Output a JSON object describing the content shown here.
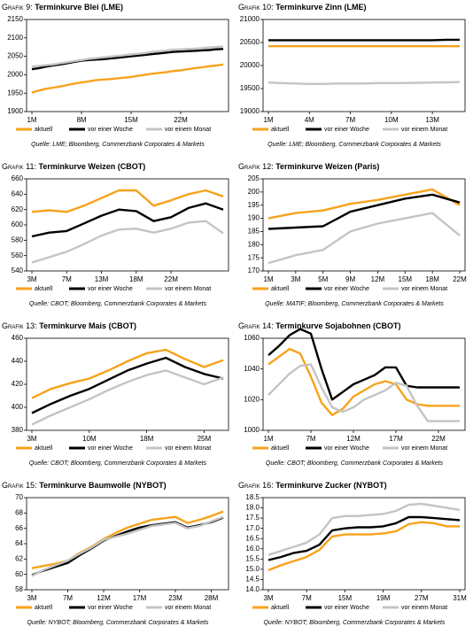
{
  "chart_data": [
    {
      "type": "line",
      "label": "Grafik 9:",
      "title": "Terminkurve Blei (LME)",
      "categories": [
        "1M",
        null,
        null,
        null,
        null,
        null,
        null,
        "8M",
        null,
        null,
        null,
        null,
        null,
        null,
        "15M",
        null,
        null,
        null,
        null,
        null,
        null,
        "22M",
        null,
        null,
        null,
        null,
        null,
        null
      ],
      "series": [
        {
          "name": "aktuell",
          "color": "#f7a21b",
          "values": [
            1952,
            1957,
            1962,
            1965,
            1968,
            1972,
            1976,
            1979,
            1982,
            1985,
            1987,
            1988,
            1990,
            1992,
            1994,
            1997,
            2000,
            2003,
            2005,
            2007,
            2010,
            2012,
            2015,
            2018,
            2020,
            2023,
            2025,
            2028
          ]
        },
        {
          "name": "vor einer Woche",
          "color": "#000000",
          "values": [
            2015,
            2018,
            2022,
            2025,
            2028,
            2031,
            2035,
            2038,
            2040,
            2041,
            2042,
            2044,
            2046,
            2048,
            2050,
            2052,
            2054,
            2056,
            2058,
            2060,
            2062,
            2063,
            2064,
            2065,
            2066,
            2067,
            2069,
            2070
          ]
        },
        {
          "name": "vor einem Monat",
          "color": "#c4c4c4",
          "values": [
            2022,
            2024,
            2026,
            2028,
            2031,
            2034,
            2037,
            2040,
            2043,
            2045,
            2047,
            2049,
            2051,
            2053,
            2055,
            2057,
            2059,
            2062,
            2064,
            2066,
            2068,
            2069,
            2070,
            2071,
            2072,
            2074,
            2075,
            2077
          ]
        }
      ],
      "ylim": [
        1900,
        2150
      ],
      "yticks": [
        1900,
        1950,
        2000,
        2050,
        2100,
        2150
      ],
      "source": "Quelle: LME; Bloomberg, Commerzbank Corporates & Markets"
    },
    {
      "type": "line",
      "label": "Grafik 10:",
      "title": "Terminkurve Zinn (LME)",
      "categories": [
        "1M",
        null,
        null,
        "4M",
        null,
        null,
        "7M",
        null,
        null,
        "10M",
        null,
        null,
        "13M",
        null,
        null
      ],
      "series": [
        {
          "name": "aktuell",
          "color": "#f7a21b",
          "values": [
            20420,
            20420,
            20420,
            20420,
            20420,
            20420,
            20420,
            20420,
            20420,
            20420,
            20420,
            20420,
            20420,
            20420,
            20420
          ]
        },
        {
          "name": "vor einer Woche",
          "color": "#000000",
          "values": [
            20550,
            20550,
            20550,
            20550,
            20550,
            20550,
            20550,
            20550,
            20550,
            20550,
            20550,
            20550,
            20550,
            20560,
            20560
          ]
        },
        {
          "name": "vor einem Monat",
          "color": "#c4c4c4",
          "values": [
            19630,
            19620,
            19610,
            19600,
            19600,
            19610,
            19610,
            19610,
            19620,
            19620,
            19620,
            19625,
            19630,
            19635,
            19640
          ]
        }
      ],
      "ylim": [
        19000,
        21000
      ],
      "yticks": [
        19000,
        19500,
        20000,
        20500,
        21000
      ],
      "source": "Quelle: LME; Bloomberg, Commerzbank Corporates & Markets"
    },
    {
      "type": "line",
      "label": "Grafik 11:",
      "title": "Terminkurve Weizen (CBOT)",
      "categories": [
        "3M",
        null,
        "7M",
        null,
        "13M",
        null,
        "18M",
        null,
        "22M",
        null,
        null,
        null
      ],
      "series": [
        {
          "name": "aktuell",
          "color": "#f7a21b",
          "values": [
            617,
            619,
            617,
            625,
            635,
            645,
            645,
            625,
            632,
            640,
            645,
            637
          ]
        },
        {
          "name": "vor einer Woche",
          "color": "#000000",
          "values": [
            585,
            590,
            592,
            602,
            612,
            620,
            618,
            605,
            610,
            622,
            628,
            620
          ]
        },
        {
          "name": "vor einem Monat",
          "color": "#c4c4c4",
          "values": [
            551,
            558,
            565,
            575,
            586,
            594,
            595,
            590,
            595,
            603,
            605,
            589
          ]
        }
      ],
      "ylim": [
        540,
        660
      ],
      "yticks": [
        540,
        560,
        580,
        600,
        620,
        640,
        660
      ],
      "source": "Quelle: CBOT; Bloomberg, Commerzbank Corporates & Markets"
    },
    {
      "type": "line",
      "label": "Grafik 12:",
      "title": "Terminkurve Weizen (Paris)",
      "categories": [
        "1M",
        "3M",
        "5M",
        "9M",
        "12M",
        "15M",
        "18M",
        "22M"
      ],
      "series": [
        {
          "name": "aktuell",
          "color": "#f7a21b",
          "values": [
            190,
            192,
            193,
            195.5,
            197,
            199,
            201,
            195
          ]
        },
        {
          "name": "vor einer Woche",
          "color": "#000000",
          "values": [
            186,
            186.5,
            187,
            192.5,
            195,
            197.5,
            199,
            196
          ]
        },
        {
          "name": "vor einem Monat",
          "color": "#c4c4c4",
          "values": [
            173,
            176,
            178,
            185,
            188,
            190,
            192,
            183.5
          ]
        }
      ],
      "ylim": [
        170,
        205
      ],
      "yticks": [
        170,
        175,
        180,
        185,
        190,
        195,
        200,
        205
      ],
      "source": "Quelle: MATIF; Bloomberg, Commerzbank Corporates & Markets"
    },
    {
      "type": "line",
      "label": "Grafik 13:",
      "title": "Terminkurve Mais (CBOT)",
      "categories": [
        "3M",
        null,
        null,
        "10M",
        null,
        null,
        "18M",
        null,
        null,
        "25M",
        null
      ],
      "series": [
        {
          "name": "aktuell",
          "color": "#f7a21b",
          "values": [
            408,
            416,
            421,
            425,
            432,
            440,
            447,
            450,
            442,
            435,
            441
          ]
        },
        {
          "name": "vor einer Woche",
          "color": "#000000",
          "values": [
            395,
            403,
            410,
            416,
            424,
            432,
            438,
            443,
            435,
            429,
            425
          ]
        },
        {
          "name": "vor einem Monat",
          "color": "#c4c4c4",
          "values": [
            385,
            393,
            400,
            407,
            415,
            422,
            428,
            432,
            426,
            420,
            426
          ]
        }
      ],
      "ylim": [
        380,
        460
      ],
      "yticks": [
        380,
        400,
        420,
        440,
        460
      ],
      "source": "Quelle: CBOT; Bloomberg, Commerzbank Corporates & Markets"
    },
    {
      "type": "line",
      "label": "Grafik 14:",
      "title": "Terminkurve Sojabohnen (CBOT)",
      "categories": [
        "1M",
        null,
        null,
        null,
        "7M",
        null,
        null,
        null,
        "12M",
        null,
        null,
        null,
        "17M",
        null,
        null,
        null,
        "22M",
        null,
        null
      ],
      "series": [
        {
          "name": "aktuell",
          "color": "#f7a21b",
          "values": [
            1043,
            1048,
            1053,
            1050,
            1035,
            1018,
            1010,
            1014,
            1022,
            1026,
            1030,
            1032,
            1030,
            1020,
            1017,
            1016,
            1016,
            1016,
            1016
          ]
        },
        {
          "name": "vor einer Woche",
          "color": "#000000",
          "values": [
            1049,
            1055,
            1062,
            1066,
            1063,
            1040,
            1020,
            1025,
            1030,
            1033,
            1036,
            1041,
            1041,
            1029,
            1028,
            1028,
            1028,
            1028,
            1028
          ]
        },
        {
          "name": "vor einem Monat",
          "color": "#c4c4c4",
          "values": [
            1023,
            1030,
            1037,
            1042,
            1043,
            1028,
            1015,
            1012,
            1015,
            1020,
            1023,
            1026,
            1031,
            1029,
            1016,
            1006,
            1006,
            1006,
            1006
          ]
        }
      ],
      "ylim": [
        1000,
        1060
      ],
      "yticks": [
        1000,
        1020,
        1040,
        1060
      ],
      "source": "Quelle: CBOT; Bloomberg, Commerzbank Corporates & Markets"
    },
    {
      "type": "line",
      "label": "Grafik 15:",
      "title": "Terminkurve Baumwolle (NYBOT)",
      "categories": [
        "3M",
        null,
        null,
        "7M",
        null,
        null,
        "12M",
        null,
        null,
        "17M",
        null,
        null,
        "23M",
        null,
        null,
        "28M",
        null
      ],
      "series": [
        {
          "name": "aktuell",
          "color": "#f7a21b",
          "values": [
            60.8,
            61.1,
            61.4,
            61.8,
            62.8,
            63.6,
            64.6,
            65.4,
            66.1,
            66.6,
            67.1,
            67.3,
            67.5,
            66.7,
            67.1,
            67.6,
            68.2
          ]
        },
        {
          "name": "vor einer Woche",
          "color": "#000000",
          "values": [
            59.9,
            60.5,
            61.0,
            61.5,
            62.5,
            63.4,
            64.4,
            65.0,
            65.6,
            66.1,
            66.4,
            66.6,
            66.8,
            66.1,
            66.4,
            66.8,
            67.4
          ]
        },
        {
          "name": "vor einem Monat",
          "color": "#c4c4c4",
          "values": [
            59.8,
            60.6,
            61.2,
            61.8,
            62.7,
            63.5,
            64.5,
            64.9,
            65.3,
            65.8,
            66.3,
            66.5,
            66.7,
            66.0,
            66.3,
            66.9,
            67.5
          ]
        }
      ],
      "ylim": [
        58,
        70
      ],
      "yticks": [
        58,
        60,
        62,
        64,
        66,
        68,
        70
      ],
      "source": "Quelle: NYBOT; Bloomberg, Commerzbank Corporates & Markets"
    },
    {
      "type": "line",
      "label": "Grafik 16:",
      "title": "Terminkurve Zucker (NYBOT)",
      "categories": [
        "3M",
        null,
        null,
        "7M",
        null,
        null,
        "15M",
        null,
        null,
        "19M",
        null,
        null,
        "27M",
        null,
        null,
        "31M"
      ],
      "series": [
        {
          "name": "aktuell",
          "color": "#f7a21b",
          "values": [
            14.95,
            15.2,
            15.4,
            15.6,
            15.95,
            16.6,
            16.7,
            16.7,
            16.7,
            16.75,
            16.85,
            17.2,
            17.3,
            17.25,
            17.1,
            17.1
          ]
        },
        {
          "name": "vor einer Woche",
          "color": "#000000",
          "values": [
            15.45,
            15.6,
            15.8,
            15.9,
            16.2,
            16.9,
            17.0,
            17.05,
            17.05,
            17.1,
            17.25,
            17.55,
            17.55,
            17.5,
            17.45,
            17.4
          ]
        },
        {
          "name": "vor einem Monat",
          "color": "#c4c4c4",
          "values": [
            15.7,
            15.9,
            16.1,
            16.3,
            16.7,
            17.5,
            17.6,
            17.6,
            17.65,
            17.7,
            17.85,
            18.15,
            18.2,
            18.1,
            18.0,
            17.9
          ]
        }
      ],
      "ylim": [
        14,
        18.5
      ],
      "yticks": [
        {
          "value": 14,
          "label": "14.0"
        },
        14.5,
        {
          "value": 15,
          "label": "15.0"
        },
        15.5,
        {
          "value": 16,
          "label": "16.0"
        },
        16.5,
        {
          "value": 17,
          "label": "17.0"
        },
        17.5,
        {
          "value": 18,
          "label": "18.0"
        },
        18.5
      ],
      "source": "Quelle: NYBOT; Bloomberg, Commerzbank Corporates & Markets"
    }
  ]
}
